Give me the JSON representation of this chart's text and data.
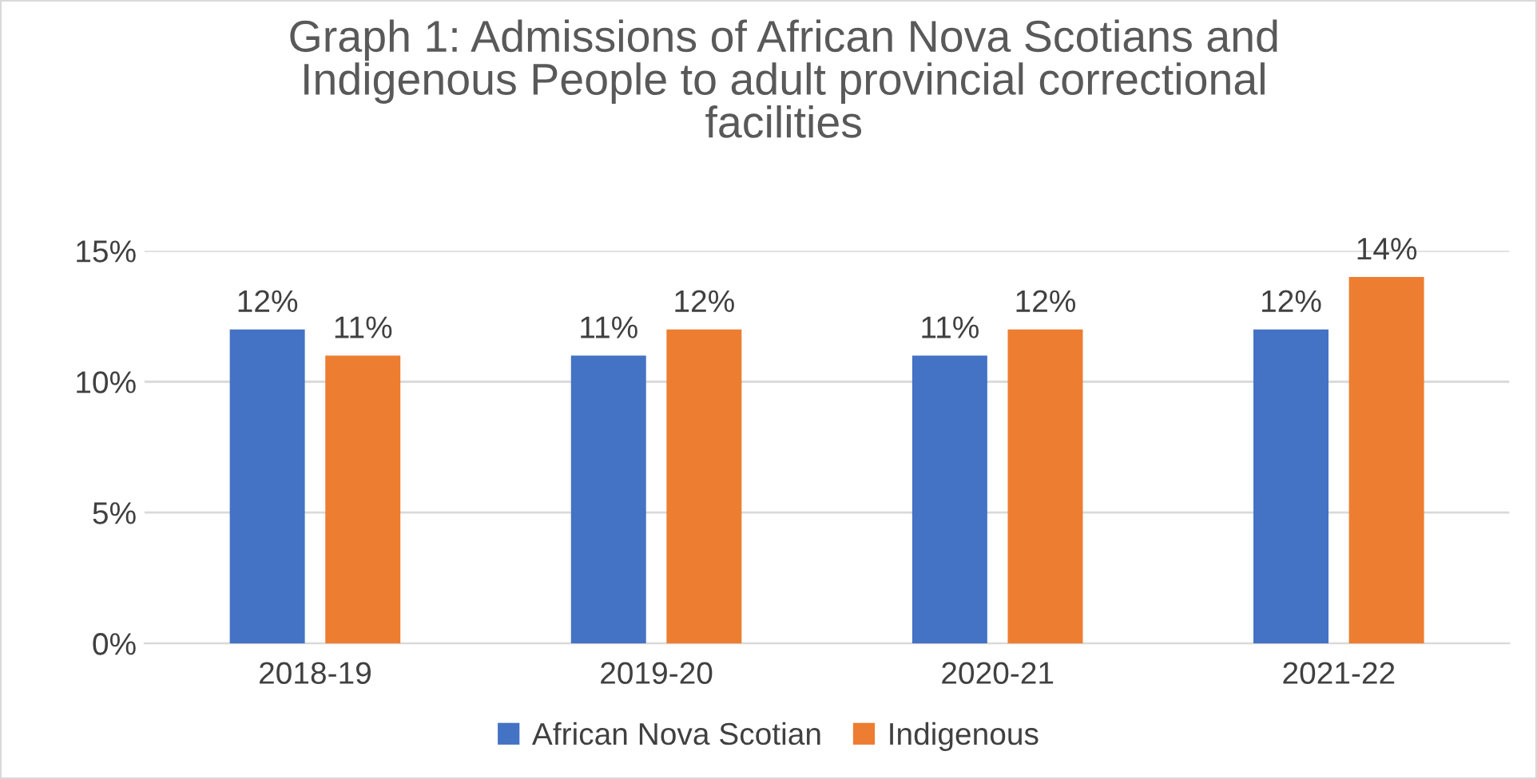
{
  "chart_data": {
    "type": "bar",
    "title": "Graph 1: Admissions of African Nova Scotians and\nIndigenous People to adult provincial correctional\nfacilities",
    "categories": [
      "2018-19",
      "2019-20",
      "2020-21",
      "2021-22"
    ],
    "series": [
      {
        "name": "African Nova Scotian",
        "color": "#4472c4",
        "values": [
          12,
          11,
          11,
          12
        ],
        "value_labels": [
          "12%",
          "11%",
          "11%",
          "12%"
        ]
      },
      {
        "name": "Indigenous",
        "color": "#ed7d31",
        "values": [
          11,
          12,
          12,
          14
        ],
        "value_labels": [
          "11%",
          "12%",
          "12%",
          "14%"
        ]
      }
    ],
    "ylim": [
      0,
      15
    ],
    "yticks": [
      {
        "value": 0,
        "label": "0%"
      },
      {
        "value": 5,
        "label": "5%"
      },
      {
        "value": 10,
        "label": "10%"
      },
      {
        "value": 15,
        "label": "15%"
      }
    ],
    "grid": "y",
    "legend": "bottom"
  }
}
